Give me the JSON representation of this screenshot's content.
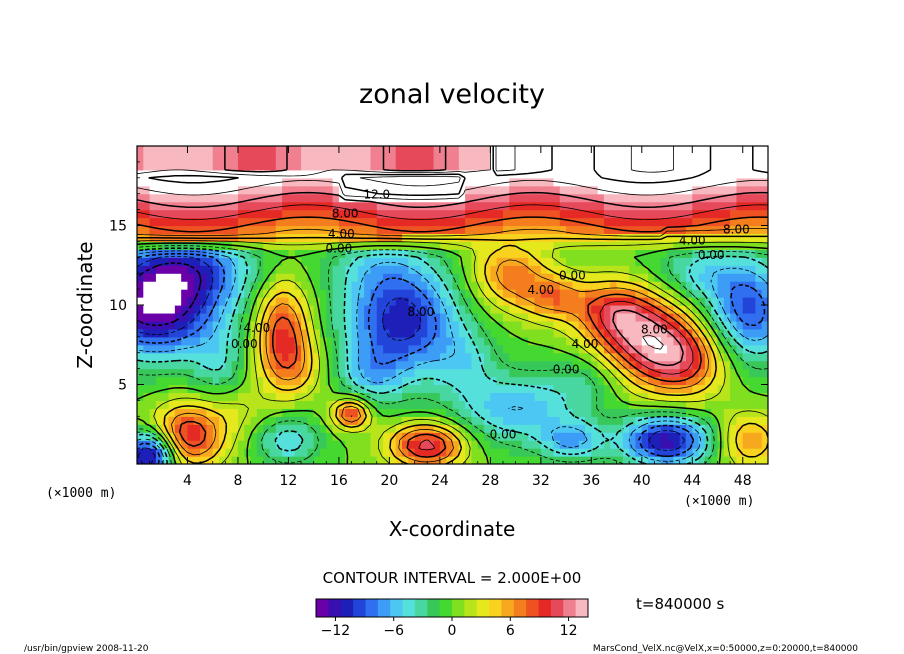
{
  "chart_data": {
    "type": "heatmap",
    "title": "zonal velocity",
    "xlabel": "X-coordinate",
    "ylabel": "Z-coordinate",
    "x_unit": "(×1000 m)",
    "y_unit": "(×1000 m)",
    "xlim": [
      0,
      50
    ],
    "ylim": [
      0,
      20
    ],
    "x_ticks": [
      4,
      8,
      12,
      16,
      20,
      24,
      28,
      32,
      36,
      40,
      44,
      48
    ],
    "y_ticks": [
      5,
      10,
      15
    ],
    "contour_interval": "CONTOUR INTERVAL = 2.000E+00",
    "time_label": "t=840000 s",
    "colorbar": {
      "min": -14,
      "max": 14,
      "ticks": [
        -12,
        -6,
        0,
        6,
        12
      ],
      "colors": [
        "#6a00a8",
        "#3a0fb0",
        "#1e1eb8",
        "#2244d8",
        "#2f6ff0",
        "#3d9cf5",
        "#4cc6f2",
        "#55e0dc",
        "#48d7a0",
        "#38c85a",
        "#44d830",
        "#80e020",
        "#b8e41c",
        "#e6e81e",
        "#f8d21e",
        "#f8a81e",
        "#f47d1e",
        "#ee5222",
        "#e52a25",
        "#e64a5a",
        "#f08090",
        "#f8b8c0"
      ]
    },
    "contour_labels": [
      {
        "text": "12.0",
        "x": 19.0,
        "z": 16.7
      },
      {
        "text": "8.00",
        "x": 16.5,
        "z": 15.5
      },
      {
        "text": "4.00",
        "x": 16.2,
        "z": 14.2
      },
      {
        "text": "0.00",
        "x": 16.0,
        "z": 13.3
      },
      {
        "text": "4.00",
        "x": 44.0,
        "z": 13.8
      },
      {
        "text": "8.00",
        "x": 47.5,
        "z": 14.5
      },
      {
        "text": "0.00",
        "x": 45.5,
        "z": 12.9
      },
      {
        "text": "0.00",
        "x": 34.5,
        "z": 11.6
      },
      {
        "text": "4.00",
        "x": 32.0,
        "z": 10.7
      },
      {
        "text": "8.00",
        "x": 22.5,
        "z": 9.3
      },
      {
        "text": "4.00",
        "x": 9.5,
        "z": 8.3
      },
      {
        "text": "0.00",
        "x": 8.5,
        "z": 7.3
      },
      {
        "text": "8.00",
        "x": 41.0,
        "z": 8.2
      },
      {
        "text": "4.00",
        "x": 35.5,
        "z": 7.3
      },
      {
        "text": "0.00",
        "x": 34.0,
        "z": 5.7
      },
      {
        "text": "0.00",
        "x": 29.0,
        "z": 1.6
      }
    ]
  },
  "footer": {
    "left": "/usr/bin/gpview  2008-11-20",
    "right": "MarsCond_VelX.nc@VelX,x=0:50000,z=0:20000,t=840000"
  }
}
